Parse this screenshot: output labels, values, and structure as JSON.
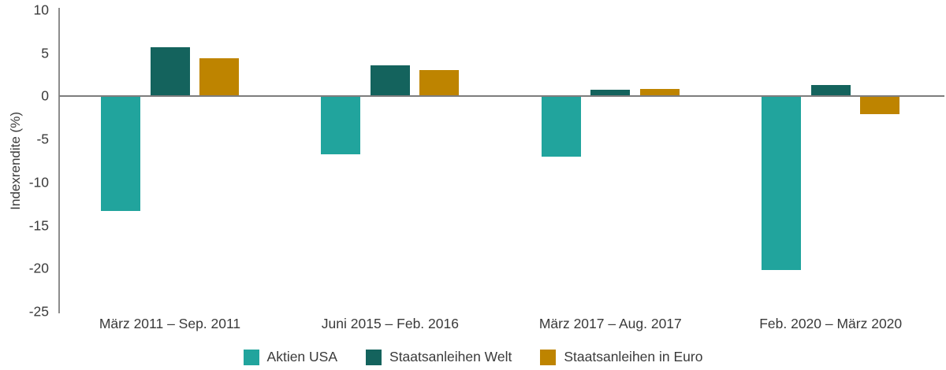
{
  "chart_data": {
    "type": "bar",
    "title": "",
    "categories": [
      "März 2011 – Sep. 2011",
      "Juni 2015 – Feb. 2016",
      "März 2017 – Aug. 2017",
      "Feb. 2020 – März 2020"
    ],
    "series": [
      {
        "name": "Aktien USA",
        "color": "#21A49D",
        "values": [
          -13.3,
          -6.7,
          -7.0,
          -20.2
        ]
      },
      {
        "name": "Staatsanleihen Welt",
        "color": "#14635D",
        "values": [
          5.7,
          3.6,
          0.8,
          1.3
        ]
      },
      {
        "name": "Staatsanleihen in Euro",
        "color": "#BE8400",
        "values": [
          4.4,
          3.1,
          0.9,
          -2.1
        ]
      }
    ],
    "xlabel": "",
    "ylabel": "Indexrendite (%)",
    "yticks": [
      10,
      5,
      0,
      -5,
      -10,
      -15,
      -20,
      -25
    ],
    "ylim": [
      -25,
      10
    ],
    "grid": false,
    "legend_position": "bottom"
  },
  "colors": {
    "background": "#FFFFFF",
    "axis_line": "#8C8C8C",
    "zero_line": "#7D7D7D",
    "text": "#3A3A3A"
  }
}
